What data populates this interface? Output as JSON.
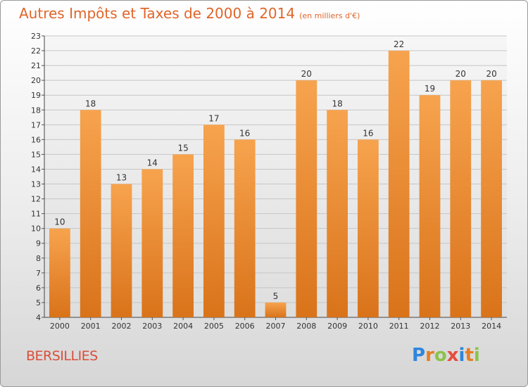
{
  "title": "Autres Impôts et Taxes de 2000 à 2014",
  "unit_note": "(en milliers d'€)",
  "commune": "BERSILLIES",
  "logo": {
    "text": "Proxiti",
    "letters": [
      {
        "ch": "P",
        "color": "#2e86de"
      },
      {
        "ch": "r",
        "color": "#e67e22"
      },
      {
        "ch": "o",
        "color": "#8bc34a"
      },
      {
        "ch": "x",
        "color": "#e74c3c"
      },
      {
        "ch": "i",
        "color": "#2e86de"
      },
      {
        "ch": "t",
        "color": "#e67e22"
      },
      {
        "ch": "i",
        "color": "#8bc34a"
      }
    ]
  },
  "chart_data": {
    "type": "bar",
    "categories": [
      "2000",
      "2001",
      "2002",
      "2003",
      "2004",
      "2005",
      "2006",
      "2007",
      "2008",
      "2009",
      "2010",
      "2011",
      "2012",
      "2013",
      "2014"
    ],
    "values": [
      10,
      18,
      13,
      14,
      15,
      17,
      16,
      5,
      20,
      18,
      16,
      22,
      19,
      20,
      20
    ],
    "ylim": [
      4,
      23
    ],
    "yticks": [
      4,
      5,
      6,
      7,
      8,
      9,
      10,
      11,
      12,
      13,
      14,
      15,
      16,
      17,
      18,
      19,
      20,
      21,
      22,
      23
    ],
    "grid": true,
    "bar_color_top": "#f7a34e",
    "bar_color_bottom": "#d9731a"
  }
}
